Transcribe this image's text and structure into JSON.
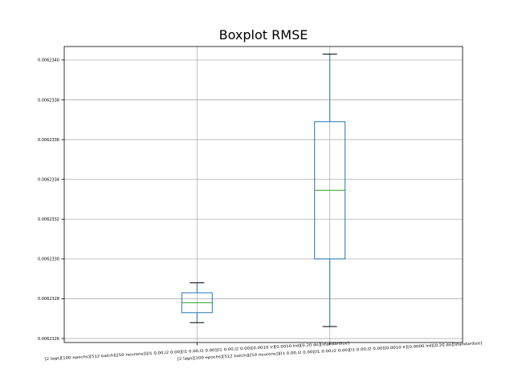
{
  "chart_data": {
    "type": "boxplot",
    "title": "Boxplot RMSE",
    "xlabel": "",
    "ylabel": "",
    "ylim": [
      0.00623258,
      0.006234068
    ],
    "yticks": [
      0.0062326,
      0.0062328,
      0.006233,
      0.0062332,
      0.0062334,
      0.0062336,
      0.0062338,
      0.006234
    ],
    "ytick_labels": [
      "0.0062326",
      "0.0062328",
      "0.0062330",
      "0.0062332",
      "0.0062334",
      "0.0062336",
      "0.0062338",
      "0.0062340"
    ],
    "grid": true,
    "categories": [
      "[2 lags][100 epochs][512 batch][[50 neurons]][l1 0.00,l2 0.00][l1 0.00,l2 0.00][l1 0.00,l2 0.00][0.0010 lr][0.0010 lrd][0.20 do][standardize]",
      "[2 lags][100 epochs][512 batch][[50 neurons]][l1 0.00,l2 0.00][l1 0.00,l2 0.00][l1 0.00,l2 0.00][0.0010 lr][0.0000 lrd][0.20 do][standardize]"
    ],
    "boxes": [
      {
        "whisker_low": 0.00623268,
        "q1": 0.00623273,
        "median": 0.00623278,
        "q3": 0.00623283,
        "whisker_high": 0.00623288
      },
      {
        "whisker_low": 0.00623266,
        "q1": 0.006233,
        "median": 0.006233345,
        "q3": 0.00623369,
        "whisker_high": 0.00623403
      }
    ],
    "colors": {
      "box": "#1f77b4",
      "median": "#2ca02c",
      "grid": "#b0b0b0",
      "axes": "#000000",
      "whisker_cap": "#000000"
    }
  }
}
